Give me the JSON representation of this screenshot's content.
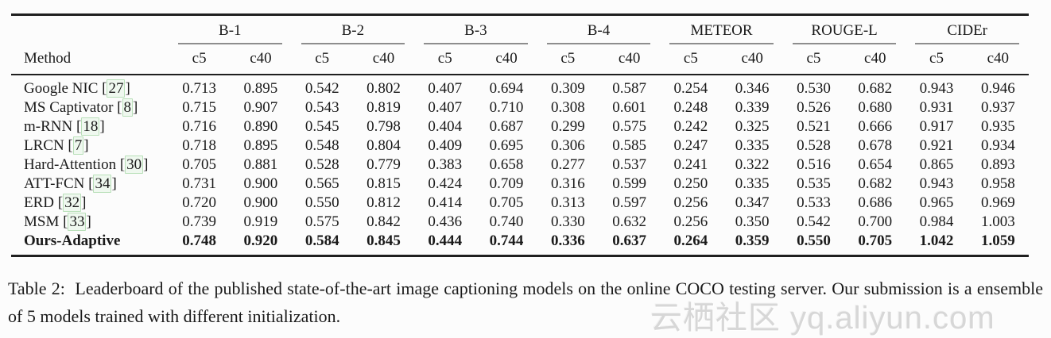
{
  "table": {
    "method_header": "Method",
    "groups": [
      {
        "label": "B-1"
      },
      {
        "label": "B-2"
      },
      {
        "label": "B-3"
      },
      {
        "label": "B-4"
      },
      {
        "label": "METEOR"
      },
      {
        "label": "ROUGE-L"
      },
      {
        "label": "CIDEr"
      }
    ],
    "subheaders": [
      "c5",
      "c40"
    ],
    "rows": [
      {
        "method": "Google NIC",
        "cite": "27",
        "bold": false,
        "values": [
          "0.713",
          "0.895",
          "0.542",
          "0.802",
          "0.407",
          "0.694",
          "0.309",
          "0.587",
          "0.254",
          "0.346",
          "0.530",
          "0.682",
          "0.943",
          "0.946"
        ]
      },
      {
        "method": "MS Captivator",
        "cite": "8",
        "bold": false,
        "values": [
          "0.715",
          "0.907",
          "0.543",
          "0.819",
          "0.407",
          "0.710",
          "0.308",
          "0.601",
          "0.248",
          "0.339",
          "0.526",
          "0.680",
          "0.931",
          "0.937"
        ]
      },
      {
        "method": "m-RNN",
        "cite": "18",
        "bold": false,
        "values": [
          "0.716",
          "0.890",
          "0.545",
          "0.798",
          "0.404",
          "0.687",
          "0.299",
          "0.575",
          "0.242",
          "0.325",
          "0.521",
          "0.666",
          "0.917",
          "0.935"
        ]
      },
      {
        "method": "LRCN",
        "cite": "7",
        "bold": false,
        "values": [
          "0.718",
          "0.895",
          "0.548",
          "0.804",
          "0.409",
          "0.695",
          "0.306",
          "0.585",
          "0.247",
          "0.335",
          "0.528",
          "0.678",
          "0.921",
          "0.934"
        ]
      },
      {
        "method": "Hard-Attention",
        "cite": "30",
        "bold": false,
        "values": [
          "0.705",
          "0.881",
          "0.528",
          "0.779",
          "0.383",
          "0.658",
          "0.277",
          "0.537",
          "0.241",
          "0.322",
          "0.516",
          "0.654",
          "0.865",
          "0.893"
        ]
      },
      {
        "method": "ATT-FCN",
        "cite": "34",
        "bold": false,
        "values": [
          "0.731",
          "0.900",
          "0.565",
          "0.815",
          "0.424",
          "0.709",
          "0.316",
          "0.599",
          "0.250",
          "0.335",
          "0.535",
          "0.682",
          "0.943",
          "0.958"
        ]
      },
      {
        "method": "ERD",
        "cite": "32",
        "bold": false,
        "values": [
          "0.720",
          "0.900",
          "0.550",
          "0.812",
          "0.414",
          "0.705",
          "0.313",
          "0.597",
          "0.256",
          "0.347",
          "0.533",
          "0.686",
          "0.965",
          "0.969"
        ]
      },
      {
        "method": "MSM",
        "cite": "33",
        "bold": false,
        "values": [
          "0.739",
          "0.919",
          "0.575",
          "0.842",
          "0.436",
          "0.740",
          "0.330",
          "0.632",
          "0.256",
          "0.350",
          "0.542",
          "0.700",
          "0.984",
          "1.003"
        ]
      },
      {
        "method": "Ours-Adaptive",
        "cite": null,
        "bold": true,
        "values": [
          "0.748",
          "0.920",
          "0.584",
          "0.845",
          "0.444",
          "0.744",
          "0.336",
          "0.637",
          "0.264",
          "0.359",
          "0.550",
          "0.705",
          "1.042",
          "1.059"
        ]
      }
    ]
  },
  "caption": {
    "label": "Table 2:",
    "text": "Leaderboard of the published state-of-the-art image captioning models on the online COCO testing server. Our submission is a ensemble of 5 models trained with different initialization."
  },
  "watermark": {
    "text": "云栖社区 yq.aliyun.com",
    "color": "#d7d7d7"
  },
  "colors": {
    "background": "#fcfcfc",
    "text": "#1a1a1a",
    "rule_dark": "#1f1f1f",
    "rule_light": "#8d8d8d",
    "cite_border": "#b9e0b9",
    "cite_bg": "#e1f3e1"
  }
}
